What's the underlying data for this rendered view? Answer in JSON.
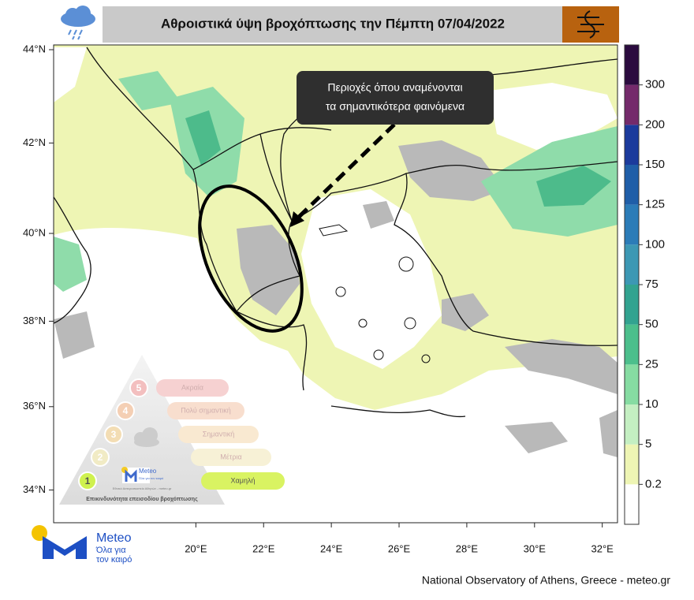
{
  "header": {
    "title": "Αθροιστικά ύψη βροχόπτωσης την Πέμπτη 07/04/2022"
  },
  "map": {
    "type": "map",
    "xlim": [
      15.8,
      32.45
    ],
    "ylim": [
      33.2,
      44.1
    ],
    "xticks": [
      {
        "value": 20,
        "label": "20°E"
      },
      {
        "value": 22,
        "label": "22°E"
      },
      {
        "value": 24,
        "label": "24°E"
      },
      {
        "value": 26,
        "label": "26°E"
      },
      {
        "value": 28,
        "label": "28°E"
      },
      {
        "value": 30,
        "label": "30°E"
      },
      {
        "value": 32,
        "label": "32°E"
      }
    ],
    "yticks": [
      {
        "value": 44,
        "label": "44°N"
      },
      {
        "value": 42,
        "label": "42°N"
      },
      {
        "value": 40,
        "label": "40°N"
      },
      {
        "value": 38,
        "label": "38°N"
      },
      {
        "value": 36,
        "label": "36°N"
      },
      {
        "value": 34,
        "label": "34°N"
      }
    ]
  },
  "annotation": {
    "lines": [
      "Περιοχές όπου αναμένονται",
      "τα σημαντικότερα φαινόμενα"
    ]
  },
  "colorbar": {
    "levels": [
      0.2,
      5,
      10,
      25,
      50,
      75,
      100,
      125,
      150,
      200,
      300
    ],
    "colors": [
      "#ffffff",
      "#eef5b4",
      "#c4efc2",
      "#86dca2",
      "#4cbf8c",
      "#32a390",
      "#3c98b4",
      "#2b7cb8",
      "#1f5ea8",
      "#1b3a9c",
      "#742a6b",
      "#2b0b3f"
    ]
  },
  "risk_scale": {
    "title": "Επικινδυνότητα επεισοδίου βροχόπτωσης",
    "levels": [
      {
        "number": 5,
        "label": "Ακραία"
      },
      {
        "number": 4,
        "label": "Πολύ σημαντική"
      },
      {
        "number": 3,
        "label": "Σημαντική"
      },
      {
        "number": 2,
        "label": "Μέτρια"
      },
      {
        "number": 1,
        "label": "Χαμηλή"
      }
    ],
    "brand": "Meteo",
    "tagline": "Όλα για τον καιρό",
    "credit": "Εθνικό Αστεροσκοπείο Αθηνών - meteo.gr"
  },
  "logo": {
    "name": "Meteo",
    "tagline": [
      "Όλα για",
      "τον καιρό"
    ]
  },
  "footer": "National Observatory of Athens, Greece - meteo.gr"
}
